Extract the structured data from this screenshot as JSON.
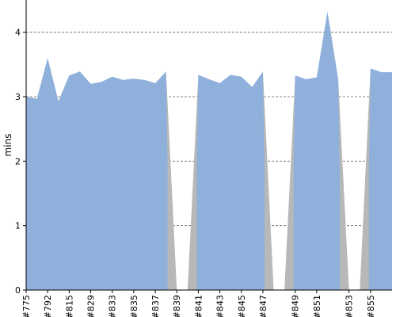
{
  "chart_data": {
    "type": "area",
    "ylabel": "mins",
    "ylim": [
      0,
      4.5
    ],
    "yticks": [
      0,
      1,
      2,
      3,
      4
    ],
    "grid": "horizontal-dashed",
    "colors": {
      "fill": "#8fb0db",
      "failed_fill": "#b8b8b8",
      "grid": "#666666"
    },
    "x_tick_labels": [
      "#775",
      "#792",
      "#815",
      "#829",
      "#833",
      "#835",
      "#837",
      "#839",
      "#841",
      "#843",
      "#845",
      "#847",
      "#849",
      "#851",
      "#853",
      "#855"
    ],
    "values": [
      3.0,
      2.97,
      3.6,
      2.93,
      3.33,
      3.39,
      3.2,
      3.23,
      3.31,
      3.26,
      3.28,
      3.26,
      3.21,
      3.39,
      0,
      0,
      3.34,
      3.27,
      3.21,
      3.34,
      3.31,
      3.15,
      3.39,
      0,
      0,
      3.33,
      3.27,
      3.3,
      4.32,
      3.27,
      0,
      0,
      3.44,
      3.38,
      3.38
    ],
    "tick_indices": [
      0,
      2,
      4,
      6,
      8,
      10,
      12,
      14,
      16,
      18,
      20,
      22,
      25,
      27,
      30,
      32
    ]
  }
}
